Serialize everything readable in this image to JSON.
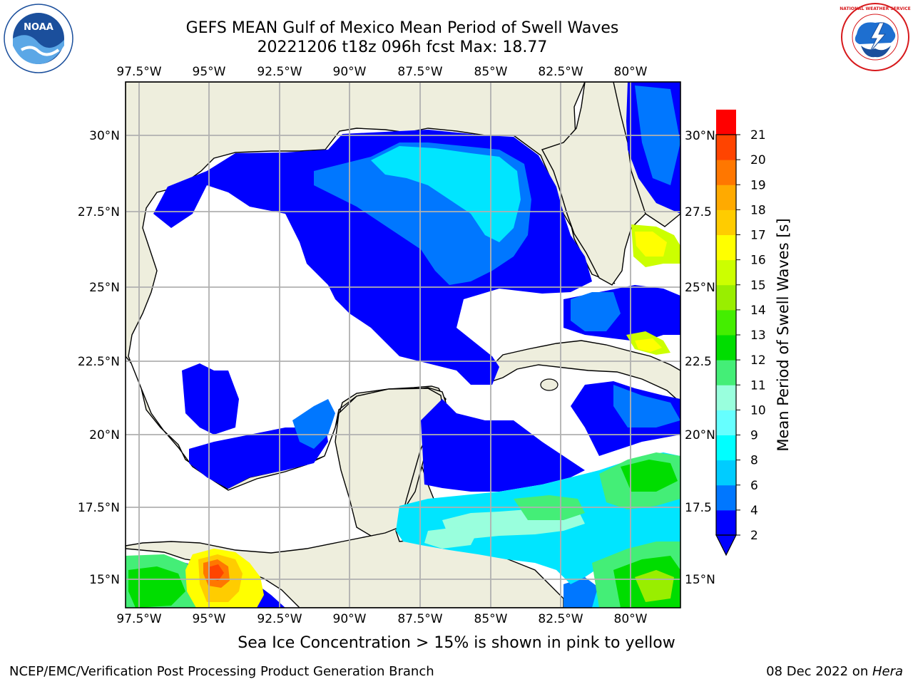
{
  "header": {
    "title": "GEFS MEAN Gulf of Mexico Mean Period of Swell Waves",
    "subtitle": "20221206 t18z 096h fcst   Max: 18.77"
  },
  "logos": {
    "left": {
      "name": "noaa-logo",
      "text": "NOAA",
      "color": "#1b4f9c"
    },
    "right": {
      "name": "nws-logo",
      "ring_text": "NATIONAL WEATHER SERVICE",
      "color": "#d7191c"
    }
  },
  "map": {
    "lon_labels": [
      "97.5°W",
      "95°W",
      "92.5°W",
      "90°W",
      "87.5°W",
      "85°W",
      "82.5°W",
      "80°W"
    ],
    "lat_labels_left": [
      "30°N",
      "27.5°N",
      "25°N",
      "22.5°N",
      "20°N",
      "17.5°N",
      "15°N"
    ],
    "lat_labels_right": [
      "30°N",
      "27.5",
      "25°N",
      "22.5",
      "20°N",
      "17.5",
      "15°N"
    ],
    "land_color": "#eeeedd",
    "ocean_color": "#ffffff",
    "grid_color": "#b0b0b0"
  },
  "colorbar": {
    "title": "Mean Period of Swell Waves [s]",
    "ticks": [
      "2",
      "4",
      "6",
      "8",
      "9",
      "10",
      "11",
      "12",
      "13",
      "14",
      "15",
      "16",
      "17",
      "18",
      "19",
      "20",
      "21"
    ],
    "colors": [
      "#0000ff",
      "#0077ff",
      "#00ccff",
      "#00ffff",
      "#66ffff",
      "#99ffdd",
      "#44ee77",
      "#00dd00",
      "#44ee00",
      "#99ee00",
      "#ccff00",
      "#ffff00",
      "#ffcc00",
      "#ffaa00",
      "#ff7700",
      "#ff4400",
      "#ff0000"
    ]
  },
  "note": "Sea Ice Concentration > 15% is shown in pink to yellow",
  "footer": {
    "left": "NCEP/EMC/Verification Post Processing Product Generation Branch",
    "date": "08 Dec 2022 on ",
    "machine": "Hera"
  }
}
